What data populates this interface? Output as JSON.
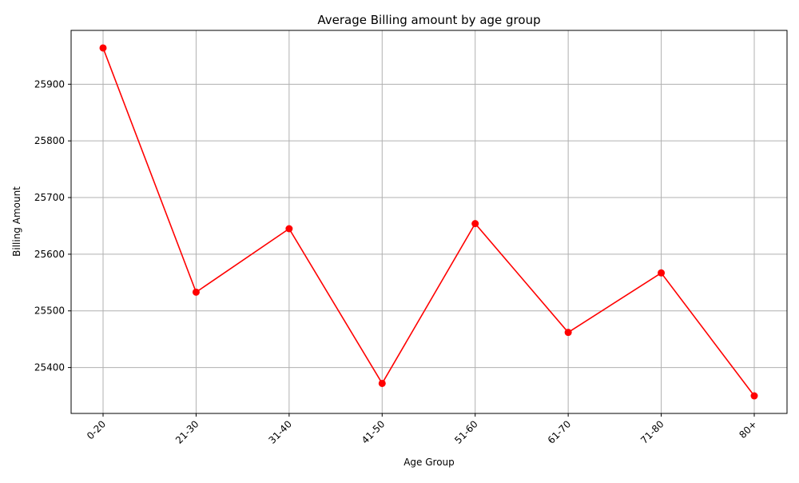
{
  "chart_data": {
    "type": "line",
    "title": "Average Billing amount by age group",
    "xlabel": "Age Group",
    "ylabel": "Billing Amount",
    "categories": [
      "0-20",
      "21-30",
      "31-40",
      "41-50",
      "51-60",
      "61-70",
      "71-80",
      "80+"
    ],
    "series": [
      {
        "values": [
          25964,
          25533,
          25645,
          25372,
          25654,
          25462,
          25567,
          25350
        ]
      }
    ],
    "ylim": [
      25319,
      25995
    ],
    "yticks": [
      25400,
      25500,
      25600,
      25700,
      25800,
      25900
    ],
    "grid": true,
    "marker": "circle",
    "line_color": "#ff0000"
  }
}
